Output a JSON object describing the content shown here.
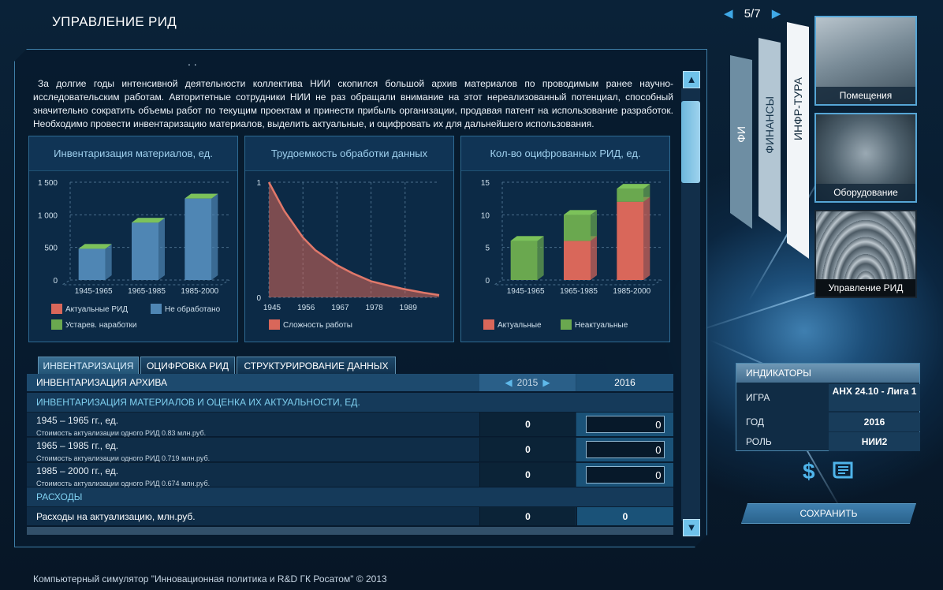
{
  "app_title": "УПРАВЛЕНИЕ РИД",
  "footer": "Компьютерный симулятор \"Инновационная политика и R&D ГК Росатом\" © 2013",
  "panel": {
    "dots": ". .",
    "description": "За долгие годы интенсивной деятельности коллектива НИИ скопился большой архив материалов по проводимым ранее научно-исследовательским работам. Авторитетные сотрудники НИИ не раз обращали внимание на этот нереализованный потенциал, способный значительно сократить объемы работ по текущим проектам и принести прибыль организации, продавая патент на использование разработок. Необходимо провести инвентаризацию материалов, выделить актуальные, и оцифровать их для дальнейшего использования."
  },
  "chart_data": [
    {
      "type": "bar",
      "title": "Инвентаризация материалов, ед.",
      "categories": [
        "1945-1965",
        "1965-1985",
        "1985-2000"
      ],
      "ylim": [
        0,
        1500
      ],
      "yticks": [
        "0",
        "500",
        "1 000",
        "1 500"
      ],
      "stacked": true,
      "series": [
        {
          "name": "Актуальные РИД",
          "color": "#d9675a",
          "values": [
            0,
            0,
            0
          ]
        },
        {
          "name": "Не обработано",
          "color": "#4f86b4",
          "values": [
            480,
            880,
            1250
          ]
        },
        {
          "name": "Устарев. наработки",
          "color": "#6aa84f",
          "values": [
            0,
            0,
            0
          ]
        }
      ],
      "grid": true
    },
    {
      "type": "area",
      "title": "Трудоемкость обработки данных",
      "x": [
        1945,
        1950,
        1956,
        1960,
        1967,
        1972,
        1978,
        1984,
        1989,
        1995,
        2000
      ],
      "xticks": [
        "1945",
        "1956",
        "1967",
        "1978",
        "1989"
      ],
      "yticks": [
        "0",
        "1"
      ],
      "ylim": [
        0,
        1
      ],
      "series": [
        {
          "name": "Сложность работы",
          "color": "#d9675a",
          "values": [
            1.0,
            0.75,
            0.52,
            0.41,
            0.28,
            0.21,
            0.14,
            0.1,
            0.07,
            0.04,
            0.02
          ]
        }
      ],
      "grid": true
    },
    {
      "type": "bar",
      "title": "Кол-во оцифрованных РИД, ед.",
      "categories": [
        "1945-1965",
        "1965-1985",
        "1985-2000"
      ],
      "ylim": [
        0,
        15
      ],
      "yticks": [
        "0",
        "5",
        "10",
        "15"
      ],
      "stacked": true,
      "series": [
        {
          "name": "Актуальные",
          "color": "#d9675a",
          "values": [
            0,
            6,
            12
          ]
        },
        {
          "name": "Неактуальные",
          "color": "#6aa84f",
          "values": [
            6,
            4,
            2
          ]
        }
      ],
      "grid": true
    }
  ],
  "tabs": [
    "ИНВЕНТАРИЗАЦИЯ",
    "ОЦИФРОВКА РИД",
    "СТРУКТУРИРОВАНИЕ ДАННЫХ"
  ],
  "table": {
    "header": {
      "label": "ИНВЕНТАРИЗАЦИЯ АРХИВА",
      "year1": "2015",
      "year2": "2016"
    },
    "section1": "ИНВЕНТАРИЗАЦИЯ МАТЕРИАЛОВ И ОЦЕНКА ИХ АКТУАЛЬНОСТИ, ЕД.",
    "rows": [
      {
        "label": "1945 – 1965 гг., ед.",
        "sub": "Стоимость актуализации одного РИД 0.83 млн.руб.",
        "v2015": "0",
        "v2016": "0"
      },
      {
        "label": "1965 – 1985 гг., ед.",
        "sub": "Стоимость актуализации одного РИД 0.719 млн.руб.",
        "v2015": "0",
        "v2016": "0"
      },
      {
        "label": "1985 – 2000 гг., ед.",
        "sub": "Стоимость актуализации одного РИД 0.674 млн.руб.",
        "v2015": "0",
        "v2016": "0"
      }
    ],
    "section2": "РАСХОДЫ",
    "expense": {
      "label": "Расходы на актуализацию, млн.руб.",
      "v2015": "0",
      "v2016": "0"
    }
  },
  "pager": {
    "text": "5/7",
    "prev": "◀",
    "next": "▶"
  },
  "side_tabs": {
    "fi": "ФИ",
    "finance": "ФИНАНСЫ",
    "infra": "ИНФР-ТУРА"
  },
  "thumbs": [
    "Помещения",
    "Оборудование",
    "Управление РИД"
  ],
  "indicators": {
    "title": "ИНДИКАТОРЫ",
    "rows": [
      {
        "key": "ИГРА",
        "value": "АНХ 24.10 - Лига 1"
      },
      {
        "key": "ГОД",
        "value": "2016"
      },
      {
        "key": "РОЛЬ",
        "value": "НИИ2"
      }
    ]
  },
  "save_label": "СОХРАНИТЬ",
  "icons": {
    "dollar": "$"
  }
}
